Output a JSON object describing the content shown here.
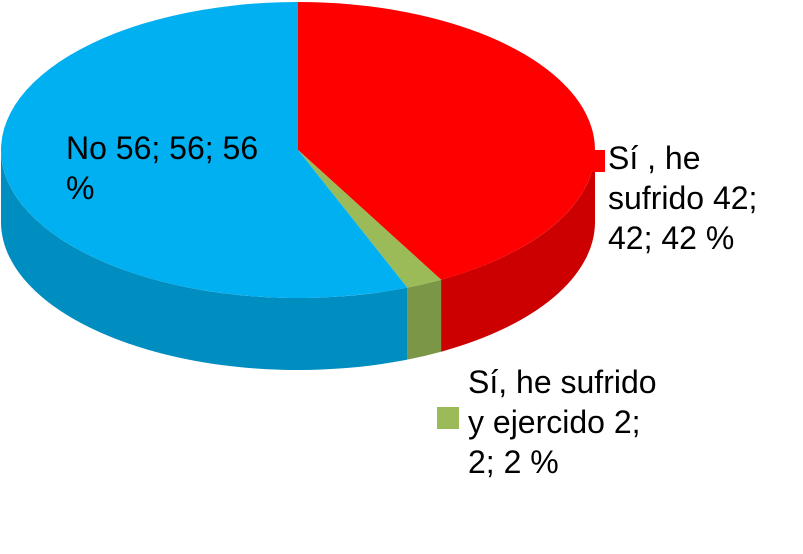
{
  "chart_data": {
    "type": "pie",
    "categories": [
      "Sí , he sufrido",
      "Sí, he sufrido y ejercido",
      "No"
    ],
    "values": [
      42,
      2,
      56
    ],
    "value_labels": [
      "42; 42; 42 %",
      "2; 2; 2 %",
      "56; 56; 56 %"
    ],
    "colors": [
      "#ff0000",
      "#9bbb59",
      "#00b0f0"
    ]
  }
}
